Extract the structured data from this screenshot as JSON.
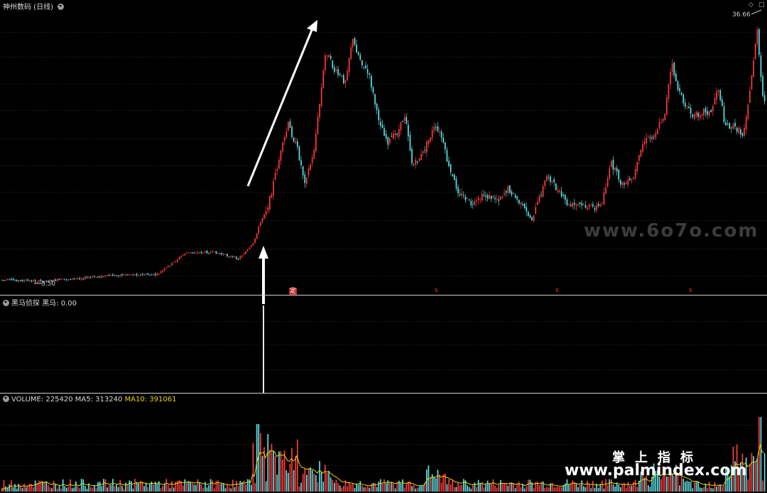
{
  "main": {
    "title": "神州数码 (日线)",
    "low_label": "3.50",
    "high_label": "36.66",
    "signal_mark": "定",
    "s_marks": [
      "s",
      "s",
      "s"
    ],
    "window_controls": [
      "◇",
      "□"
    ]
  },
  "indicator": {
    "title": "黑马侦探",
    "value_label": "黑马: 0.00"
  },
  "volume": {
    "label": "VOLUME: 225420",
    "ma5": "MA5: 313240",
    "ma10": "MA10: 391061"
  },
  "watermarks": {
    "site1": "www.6o7o.com",
    "brand": "掌上指标",
    "site2": "www.palmindex.com"
  },
  "colors": {
    "up": "#ff3b3b",
    "down": "#5ce1e6",
    "volume_line": "#e5d600",
    "arrow": "#ffffff"
  }
}
